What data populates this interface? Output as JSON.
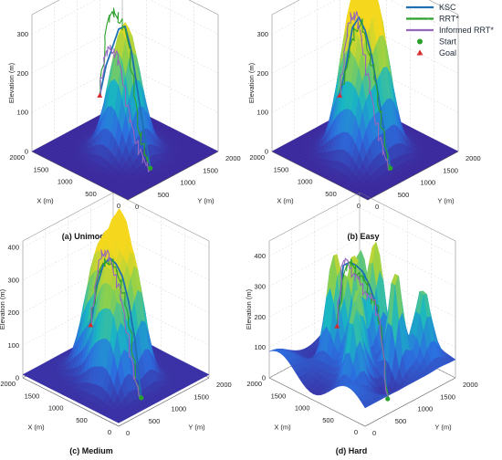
{
  "legend": {
    "items": [
      {
        "label": "KSC",
        "kind": "line",
        "color": "#1f6fb2"
      },
      {
        "label": "RRT*",
        "kind": "line",
        "color": "#2ca02c"
      },
      {
        "label": "Informed RRT*",
        "kind": "line",
        "color": "#9467bd"
      },
      {
        "label": "Start",
        "kind": "circle",
        "color": "#2ca02c"
      },
      {
        "label": "Goal",
        "kind": "triangle",
        "color": "#d62728"
      }
    ]
  },
  "chart_data": [
    {
      "type": "surface3d",
      "title": "(a) Unimodal",
      "xlabel": "X (m)",
      "ylabel": "Y (m)",
      "zlabel": "Elevation (m)",
      "x_ticks": [
        "2000",
        "1500",
        "1000",
        "500",
        "0"
      ],
      "y_ticks": [
        "0",
        "500",
        "1000",
        "1500",
        "2000"
      ],
      "z_ticks": [
        "0",
        "100",
        "200",
        "300"
      ],
      "zlim": [
        0,
        350
      ],
      "terrain": "unimodal",
      "start": [
        0,
        500,
        50
      ],
      "goal": [
        2000,
        1500,
        50
      ],
      "series": [
        {
          "name": "KSC",
          "color": "#1f6fb2",
          "elevation_profile": [
            50,
            120,
            200,
            280,
            320,
            290,
            220,
            150,
            50
          ]
        },
        {
          "name": "RRT*",
          "color": "#2ca02c",
          "elevation_profile": [
            50,
            60,
            90,
            180,
            290,
            300,
            310,
            260,
            50
          ]
        },
        {
          "name": "Informed RRT*",
          "color": "#9467bd",
          "elevation_profile": [
            50,
            50,
            80,
            120,
            200,
            230,
            220,
            180,
            50
          ]
        }
      ]
    },
    {
      "type": "surface3d",
      "title": "(b) Easy",
      "xlabel": "X (m)",
      "ylabel": "Y (m)",
      "zlabel": "Elevation (m)",
      "x_ticks": [
        "2000",
        "1500",
        "1000",
        "500",
        "0"
      ],
      "y_ticks": [
        "0",
        "500",
        "1000",
        "1500",
        "2000"
      ],
      "z_ticks": [
        "0",
        "100",
        "200",
        "300"
      ],
      "zlim": [
        0,
        350
      ],
      "terrain": "easy",
      "start": [
        0,
        500,
        50
      ],
      "goal": [
        2000,
        1500,
        50
      ],
      "series": [
        {
          "name": "KSC",
          "color": "#1f6fb2",
          "elevation_profile": [
            50,
            120,
            200,
            270,
            310,
            320,
            270,
            150,
            50
          ]
        },
        {
          "name": "RRT*",
          "color": "#2ca02c",
          "elevation_profile": [
            50,
            80,
            150,
            220,
            260,
            300,
            260,
            150,
            50
          ]
        },
        {
          "name": "Informed RRT*",
          "color": "#9467bd",
          "elevation_profile": [
            50,
            70,
            130,
            200,
            280,
            330,
            300,
            200,
            50
          ]
        }
      ]
    },
    {
      "type": "surface3d",
      "title": "(c) Medium",
      "xlabel": "X (m)",
      "ylabel": "Y (m)",
      "zlabel": "Elevation (m)",
      "x_ticks": [
        "2000",
        "1500",
        "1000",
        "500",
        "0"
      ],
      "y_ticks": [
        "0",
        "500",
        "1000",
        "1500",
        "2000"
      ],
      "z_ticks": [
        "0",
        "100",
        "200",
        "300",
        "400"
      ],
      "zlim": [
        0,
        420
      ],
      "terrain": "medium",
      "start": [
        0,
        500,
        50
      ],
      "goal": [
        2000,
        1500,
        50
      ],
      "series": [
        {
          "name": "KSC",
          "color": "#1f6fb2",
          "elevation_profile": [
            50,
            200,
            290,
            340,
            350,
            340,
            290,
            200,
            50
          ]
        },
        {
          "name": "RRT*",
          "color": "#2ca02c",
          "elevation_profile": [
            50,
            70,
            200,
            260,
            310,
            320,
            300,
            230,
            50
          ]
        },
        {
          "name": "Informed RRT*",
          "color": "#9467bd",
          "elevation_profile": [
            50,
            90,
            210,
            300,
            340,
            360,
            330,
            210,
            50
          ]
        }
      ]
    },
    {
      "type": "surface3d",
      "title": "(d) Hard",
      "xlabel": "X (m)",
      "ylabel": "Y (m)",
      "zlabel": "Elevation (m)",
      "x_ticks": [
        "2000",
        "1500",
        "1000",
        "500",
        "0"
      ],
      "y_ticks": [
        "0",
        "500",
        "1000",
        "1500",
        "2000"
      ],
      "z_ticks": [
        "0",
        "100",
        "200",
        "300",
        "400"
      ],
      "zlim": [
        0,
        450
      ],
      "terrain": "hard",
      "start": [
        0,
        500,
        50
      ],
      "goal": [
        2000,
        1500,
        50
      ],
      "series": [
        {
          "name": "KSC",
          "color": "#1f6fb2",
          "elevation_profile": [
            50,
            250,
            310,
            340,
            350,
            340,
            320,
            280,
            50
          ]
        },
        {
          "name": "RRT*",
          "color": "#2ca02c",
          "elevation_profile": [
            50,
            200,
            300,
            280,
            320,
            300,
            320,
            260,
            50
          ]
        },
        {
          "name": "Informed RRT*",
          "color": "#9467bd",
          "elevation_profile": [
            50,
            260,
            330,
            300,
            330,
            310,
            330,
            290,
            50
          ]
        }
      ]
    }
  ]
}
